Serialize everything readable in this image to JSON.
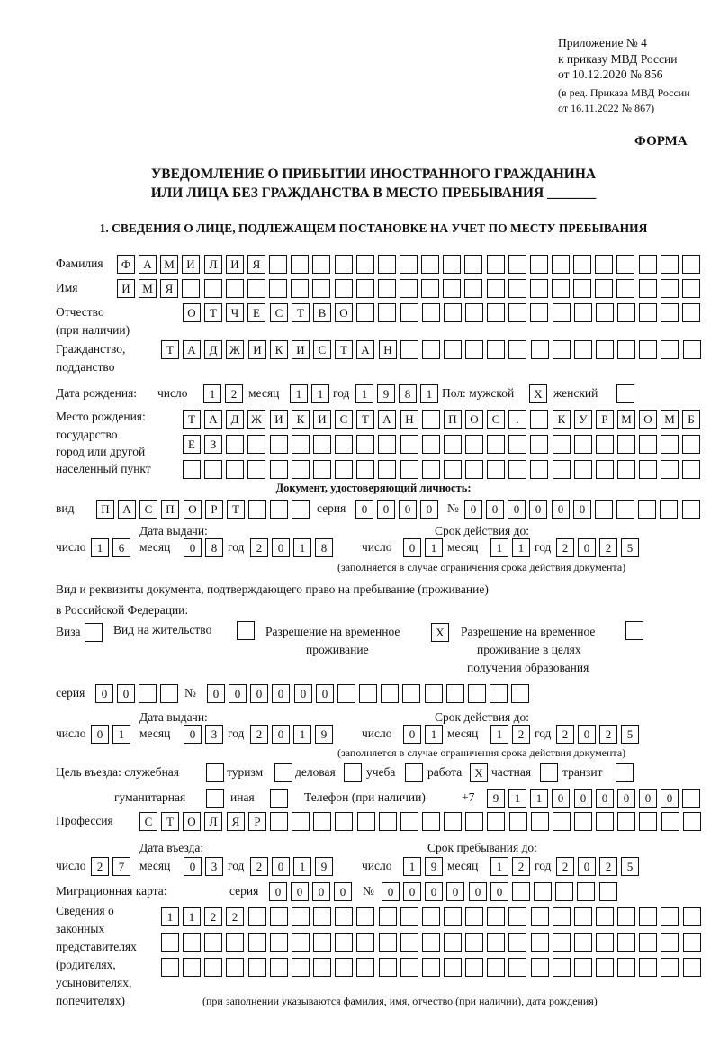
{
  "header": {
    "appendix": "Приложение № 4",
    "order": "к приказу МВД России",
    "order_date": "от 10.12.2020 № 856",
    "revision_1": "(в ред. Приказа МВД России",
    "revision_2": "от 16.11.2022 № 867)",
    "form_label": "ФОРМА",
    "title_1": "УВЕДОМЛЕНИЕ О ПРИБЫТИИ ИНОСТРАННОГО ГРАЖДАНИНА",
    "title_2": "ИЛИ ЛИЦА БЕЗ ГРАЖДАНСТВА В МЕСТО ПРЕБЫВАНИЯ _______",
    "section_1": "1. СВЕДЕНИЯ О ЛИЦЕ, ПОДЛЕЖАЩЕМ ПОСТАНОВКЕ НА УЧЕТ ПО МЕСТУ ПРЕБЫВАНИЯ"
  },
  "labels": {
    "surname": "Фамилия",
    "name": "Имя",
    "patronymic": "Отчество",
    "patronymic_note": "(при наличии)",
    "citizenship": "Гражданство,",
    "citizenship_2": "подданство",
    "birth_date": "Дата рождения:",
    "day": "число",
    "month": "месяц",
    "year": "год",
    "sex_male": "Пол: мужской",
    "sex_female": "женский",
    "birth_place": "Место рождения:",
    "birth_place_2": "государство",
    "birth_place_3": "город или другой",
    "birth_place_4": "населенный пункт",
    "id_doc": "Документ, удостоверяющий личность:",
    "kind": "вид",
    "series": "серия",
    "number": "№",
    "issue_date": "Дата выдачи:",
    "valid_until": "Срок действия до:",
    "validity_note": "(заполняется в случае ограничения срока действия документа)",
    "permit_doc_1": "Вид и реквизиты документа, подтверждающего право на пребывание (проживание)",
    "permit_doc_2": "в Российской Федерации:",
    "visa": "Виза",
    "residence": "Вид на жительство",
    "temp_res_1": "Разрешение на временное",
    "temp_res_2": "проживание",
    "temp_edu_1": "Разрешение на временное",
    "temp_edu_2": "проживание в целях",
    "temp_edu_3": "получения образования",
    "purpose": "Цель въезда: служебная",
    "tourism": "туризм",
    "business": "деловая",
    "study": "учеба",
    "work": "работа",
    "private": "частная",
    "transit": "транзит",
    "humanitarian": "гуманитарная",
    "other": "иная",
    "phone": "Телефон (при наличии)",
    "phone_prefix": "+7",
    "profession": "Профессия",
    "entry_date": "Дата въезда:",
    "stay_until": "Срок пребывания до:",
    "migration_card": "Миграционная карта:",
    "reps_1": "Сведения о",
    "reps_2": "законных",
    "reps_3": "представителях",
    "reps_4": "(родителях,",
    "reps_5": "усыновителях,",
    "reps_6": "попечителях)",
    "reps_note": "(при заполнении указываются фамилия, имя, отчество (при наличии), дата рождения)"
  },
  "fields": {
    "surname": [
      "Ф",
      "А",
      "М",
      "И",
      "Л",
      "И",
      "Я"
    ],
    "name": [
      "И",
      "М",
      "Я"
    ],
    "patronymic": [
      "О",
      "Т",
      "Ч",
      "Е",
      "С",
      "Т",
      "В",
      "О"
    ],
    "citizenship": [
      "Т",
      "А",
      "Д",
      "Ж",
      "И",
      "К",
      "И",
      "С",
      "Т",
      "А",
      "Н"
    ],
    "birth_day": [
      "1",
      "2"
    ],
    "birth_month": [
      "1",
      "1"
    ],
    "birth_year": [
      "1",
      "9",
      "8",
      "1"
    ],
    "sex_male": [
      "X"
    ],
    "sex_female": [],
    "birth_place_1": [
      "Т",
      "А",
      "Д",
      "Ж",
      "И",
      "К",
      "И",
      "С",
      "Т",
      "А",
      "Н",
      "",
      "П",
      "О",
      "С",
      ".",
      " ",
      "К",
      "У",
      "Р",
      "М",
      "О",
      "М",
      "Б"
    ],
    "birth_place_2": [
      "Е",
      "З"
    ],
    "birth_place_3": [],
    "doc_kind": [
      "П",
      "А",
      "С",
      "П",
      "О",
      "Р",
      "Т"
    ],
    "doc_series": [
      "0",
      "0",
      "0",
      "0"
    ],
    "doc_number": [
      "0",
      "0",
      "0",
      "0",
      "0",
      "0"
    ],
    "doc_issue_day": [
      "1",
      "6"
    ],
    "doc_issue_month": [
      "0",
      "8"
    ],
    "doc_issue_year": [
      "2",
      "0",
      "1",
      "8"
    ],
    "doc_valid_day": [
      "0",
      "1"
    ],
    "doc_valid_month": [
      "1",
      "1"
    ],
    "doc_valid_year": [
      "2",
      "0",
      "2",
      "5"
    ],
    "permit_visa": [],
    "permit_residence": [],
    "permit_temp": [
      "X"
    ],
    "permit_temp_edu": [],
    "permit_series": [
      "0",
      "0"
    ],
    "permit_number": [
      "0",
      "0",
      "0",
      "0",
      "0",
      "0"
    ],
    "permit_issue_day": [
      "0",
      "1"
    ],
    "permit_issue_month": [
      "0",
      "3"
    ],
    "permit_issue_year": [
      "2",
      "0",
      "1",
      "9"
    ],
    "permit_valid_day": [
      "0",
      "1"
    ],
    "permit_valid_month": [
      "1",
      "2"
    ],
    "permit_valid_year": [
      "2",
      "0",
      "2",
      "5"
    ],
    "purpose_official": [],
    "purpose_tourism": [],
    "purpose_business": [],
    "purpose_study": [],
    "purpose_work": [
      "X"
    ],
    "purpose_private": [],
    "purpose_transit": [],
    "purpose_humanitarian": [],
    "purpose_other": [],
    "phone": [
      "9",
      "1",
      "1",
      "0",
      "0",
      "0",
      "0",
      "0",
      "0"
    ],
    "profession": [
      "С",
      "Т",
      "О",
      "Л",
      "Я",
      "Р"
    ],
    "entry_day": [
      "2",
      "7"
    ],
    "entry_month": [
      "0",
      "3"
    ],
    "entry_year": [
      "2",
      "0",
      "1",
      "9"
    ],
    "stay_day": [
      "1",
      "9"
    ],
    "stay_month": [
      "1",
      "2"
    ],
    "stay_year": [
      "2",
      "0",
      "2",
      "5"
    ],
    "mig_series": [
      "0",
      "0",
      "0",
      "0"
    ],
    "mig_number": [
      "0",
      "0",
      "0",
      "0",
      "0",
      "0"
    ],
    "reps_1": [
      "1",
      "1",
      "2",
      "2"
    ],
    "reps_2": [],
    "reps_3": []
  }
}
